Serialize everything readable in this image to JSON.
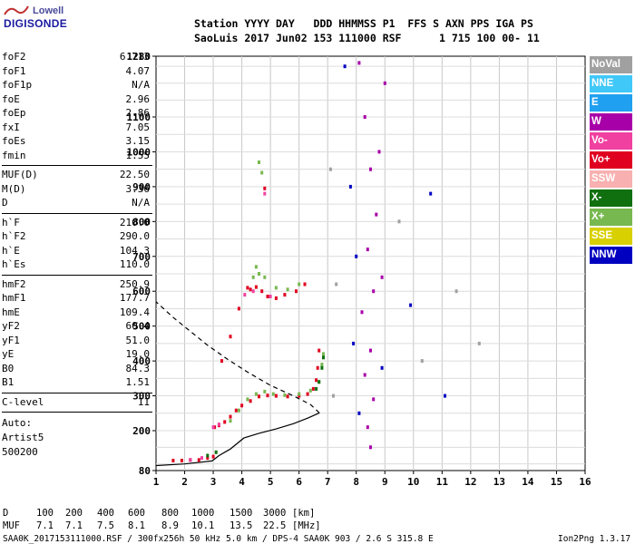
{
  "header": {
    "logo_top": "Lowell",
    "logo_bottom": "DIGISONDE",
    "line1": "Station YYYY DAY   DDD HHMMSS P1  FFS S AXN PPS IGA PS",
    "line2": "SaoLuis 2017 Jun02 153 111000 RSF      1 715 100 00- 11"
  },
  "params": [
    {
      "name": "foF2",
      "value": "6.713"
    },
    {
      "name": "foF1",
      "value": "4.07"
    },
    {
      "name": "foF1p",
      "value": "N/A"
    },
    {
      "name": "foE",
      "value": "2.96"
    },
    {
      "name": "foEp",
      "value": "2.86"
    },
    {
      "name": "fxI",
      "value": "7.05"
    },
    {
      "name": "foEs",
      "value": "3.15"
    },
    {
      "name": "fmin",
      "value": "1.55"
    },
    {
      "name": "MUF(D)",
      "value": "22.50"
    },
    {
      "name": "M(D)",
      "value": "3.36"
    },
    {
      "name": "D",
      "value": "N/A"
    },
    {
      "name": "h`F",
      "value": "210.0"
    },
    {
      "name": "h`F2",
      "value": "290.0"
    },
    {
      "name": "h`E",
      "value": "104.3"
    },
    {
      "name": "h`Es",
      "value": "110.0"
    },
    {
      "name": "hmF2",
      "value": "250.9"
    },
    {
      "name": "hmF1",
      "value": "177.7"
    },
    {
      "name": "hmE",
      "value": "109.4"
    },
    {
      "name": "yF2",
      "value": "60.4"
    },
    {
      "name": "yF1",
      "value": "51.0"
    },
    {
      "name": "yE",
      "value": "19.0"
    },
    {
      "name": "B0",
      "value": "84.3"
    },
    {
      "name": "B1",
      "value": "1.51"
    },
    {
      "name": "C-level",
      "value": "11"
    }
  ],
  "autoscale": {
    "line1": "Auto:",
    "line2": "Artist5",
    "line3": "500200"
  },
  "legend": [
    {
      "label": "NoVal",
      "color": "#a0a0a0"
    },
    {
      "label": "NNE",
      "color": "#40c8f8"
    },
    {
      "label": "E",
      "color": "#20a0f0"
    },
    {
      "label": "W",
      "color": "#a800a8"
    },
    {
      "label": "Vo-",
      "color": "#f040a0"
    },
    {
      "label": "Vo+",
      "color": "#e00020"
    },
    {
      "label": "SSW",
      "color": "#f8b0b0"
    },
    {
      "label": "X-",
      "color": "#107010"
    },
    {
      "label": "X+",
      "color": "#78b850"
    },
    {
      "label": "SSE",
      "color": "#d8d000"
    },
    {
      "label": "NNW",
      "color": "#0000c0"
    }
  ],
  "footer": {
    "d_label": "D",
    "d_values": [
      "100",
      "200",
      "400",
      "600",
      "800",
      "1000",
      "1500",
      "3000",
      "[km]"
    ],
    "muf_label": "MUF",
    "muf_values": [
      "7.1",
      "7.1",
      "7.5",
      "8.1",
      "8.9",
      "10.1",
      "13.5",
      "22.5",
      "[MHz]"
    ],
    "file_info": "SAA0K_2017153111000.RSF / 300fx256h 50 kHz 5.0 km / DPS-4 SAA0K 903 / 2.6 S 315.8 E",
    "version": "Ion2Png 1.3.17"
  },
  "chart_data": {
    "type": "scatter",
    "xlim": [
      1,
      16
    ],
    "ylim": [
      80,
      1280
    ],
    "x_ticks": [
      1,
      2,
      3,
      4,
      5,
      6,
      7,
      8,
      9,
      10,
      11,
      12,
      13,
      14,
      15,
      16
    ],
    "y_ticks": [
      80,
      200,
      300,
      400,
      500,
      600,
      700,
      800,
      900,
      1000,
      1100,
      1280
    ],
    "grid": true,
    "legend_position": "right",
    "series": [
      {
        "name": "Vo+",
        "color": "#e00020",
        "points": [
          [
            1.6,
            110
          ],
          [
            1.9,
            110
          ],
          [
            2.2,
            112
          ],
          [
            2.5,
            112
          ],
          [
            2.8,
            118
          ],
          [
            3.0,
            122
          ],
          [
            3.05,
            210
          ],
          [
            3.2,
            215
          ],
          [
            3.4,
            225
          ],
          [
            3.6,
            240
          ],
          [
            3.8,
            258
          ],
          [
            4.0,
            272
          ],
          [
            4.3,
            285
          ],
          [
            4.6,
            298
          ],
          [
            4.9,
            301
          ],
          [
            5.2,
            300
          ],
          [
            5.6,
            298
          ],
          [
            6.0,
            300
          ],
          [
            6.3,
            305
          ],
          [
            6.5,
            320
          ],
          [
            6.6,
            345
          ],
          [
            6.65,
            380
          ],
          [
            6.7,
            430
          ],
          [
            4.3,
            605
          ],
          [
            4.5,
            612
          ],
          [
            4.7,
            600
          ],
          [
            4.9,
            585
          ],
          [
            5.2,
            580
          ],
          [
            5.5,
            590
          ],
          [
            5.9,
            600
          ],
          [
            6.2,
            620
          ],
          [
            3.3,
            400
          ],
          [
            3.6,
            470
          ],
          [
            3.9,
            550
          ],
          [
            4.2,
            610
          ],
          [
            4.8,
            895
          ]
        ]
      },
      {
        "name": "X+",
        "color": "#78b850",
        "points": [
          [
            3.6,
            228
          ],
          [
            3.9,
            258
          ],
          [
            4.2,
            290
          ],
          [
            4.5,
            305
          ],
          [
            4.8,
            312
          ],
          [
            5.1,
            305
          ],
          [
            5.5,
            302
          ],
          [
            6.0,
            305
          ],
          [
            6.4,
            315
          ],
          [
            6.7,
            340
          ],
          [
            6.8,
            390
          ],
          [
            6.85,
            420
          ],
          [
            4.4,
            640
          ],
          [
            4.5,
            670
          ],
          [
            4.6,
            650
          ],
          [
            4.8,
            640
          ],
          [
            5.2,
            610
          ],
          [
            5.6,
            605
          ],
          [
            6.0,
            620
          ],
          [
            4.6,
            970
          ],
          [
            4.7,
            940
          ]
        ]
      },
      {
        "name": "X-",
        "color": "#107010",
        "points": [
          [
            2.8,
            125
          ],
          [
            3.1,
            135
          ],
          [
            6.7,
            340
          ],
          [
            6.8,
            380
          ],
          [
            6.85,
            410
          ],
          [
            6.6,
            320
          ]
        ]
      },
      {
        "name": "Vo-",
        "color": "#f040a0",
        "points": [
          [
            2.2,
            112
          ],
          [
            2.6,
            118
          ],
          [
            3.0,
            210
          ],
          [
            3.2,
            218
          ],
          [
            4.1,
            590
          ],
          [
            4.4,
            600
          ],
          [
            5.0,
            585
          ],
          [
            4.8,
            880
          ]
        ]
      },
      {
        "name": "W",
        "color": "#a800a8",
        "points": [
          [
            8.1,
            1260
          ],
          [
            8.3,
            1100
          ],
          [
            8.5,
            950
          ],
          [
            8.7,
            820
          ],
          [
            8.4,
            720
          ],
          [
            8.6,
            600
          ],
          [
            8.2,
            540
          ],
          [
            8.5,
            430
          ],
          [
            8.3,
            360
          ],
          [
            8.6,
            290
          ],
          [
            8.4,
            210
          ],
          [
            8.5,
            150
          ],
          [
            8.8,
            1000
          ],
          [
            9.0,
            1200
          ],
          [
            8.9,
            640
          ]
        ]
      },
      {
        "name": "NNW",
        "color": "#0000c0",
        "points": [
          [
            7.6,
            1250
          ],
          [
            7.8,
            900
          ],
          [
            8.0,
            700
          ],
          [
            7.9,
            450
          ],
          [
            8.1,
            250
          ],
          [
            8.9,
            380
          ],
          [
            9.9,
            560
          ],
          [
            10.6,
            880
          ],
          [
            11.1,
            300
          ]
        ]
      },
      {
        "name": "NoVal",
        "color": "#a0a0a0",
        "points": [
          [
            7.1,
            950
          ],
          [
            7.3,
            620
          ],
          [
            7.2,
            300
          ],
          [
            9.5,
            800
          ],
          [
            10.3,
            400
          ],
          [
            11.5,
            600
          ],
          [
            12.3,
            450
          ]
        ]
      }
    ],
    "profile_solid": [
      [
        1.0,
        95
      ],
      [
        2.0,
        100
      ],
      [
        2.96,
        109
      ],
      [
        3.2,
        125
      ],
      [
        3.6,
        145
      ],
      [
        4.07,
        178
      ],
      [
        4.6,
        192
      ],
      [
        5.2,
        205
      ],
      [
        5.8,
        220
      ],
      [
        6.3,
        236
      ],
      [
        6.713,
        251
      ]
    ],
    "profile_dashed": [
      [
        6.713,
        251
      ],
      [
        6.4,
        275
      ],
      [
        5.8,
        300
      ],
      [
        5.0,
        330
      ],
      [
        4.2,
        368
      ],
      [
        3.5,
        405
      ],
      [
        2.8,
        445
      ],
      [
        2.2,
        485
      ],
      [
        1.6,
        525
      ],
      [
        1.0,
        570
      ]
    ]
  }
}
